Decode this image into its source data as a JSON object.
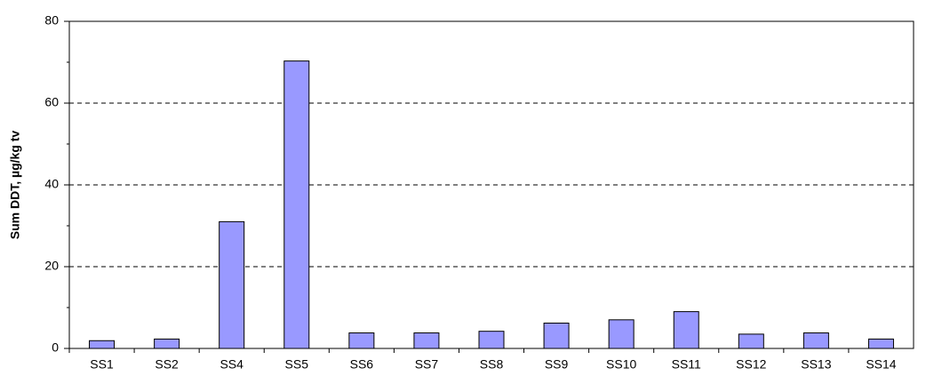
{
  "chart_data": {
    "type": "bar",
    "ylabel": "Sum DDT, µg/kg tv",
    "categories": [
      "SS1",
      "SS2",
      "SS4",
      "SS5",
      "SS6",
      "SS7",
      "SS8",
      "SS9",
      "SS10",
      "SS11",
      "SS12",
      "SS13",
      "SS14"
    ],
    "values": [
      1.9,
      2.3,
      31,
      70.3,
      3.8,
      3.8,
      4.2,
      6.2,
      7,
      9,
      3.5,
      3.8,
      2.3
    ],
    "color": "#9999ff",
    "ylim": [
      0,
      80
    ],
    "yticks": [
      0,
      20,
      40,
      60,
      80
    ],
    "yminorticks": [
      10,
      30,
      50,
      70
    ],
    "grid": true
  }
}
